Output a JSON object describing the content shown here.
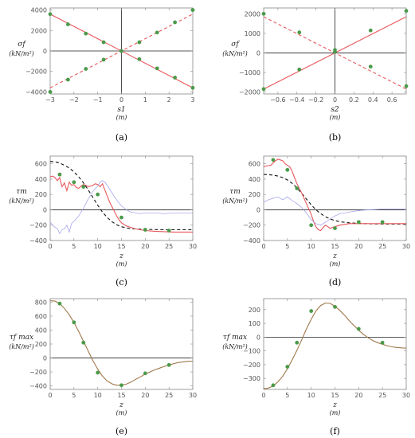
{
  "colors": {
    "red": "#e8575b",
    "blue": "#9b9bea",
    "black": "#111111",
    "green": "#4a9a4a",
    "olive": "#a0784a"
  },
  "chart_data": [
    {
      "panel": "a",
      "caption": "(a)",
      "type": "scatter",
      "xlabel": "s1",
      "xunit": "(m)",
      "ylabel": "σf",
      "yunit": "(kN/m²)",
      "xlim": [
        -3,
        3
      ],
      "ylim": [
        -4200,
        4200
      ],
      "xticks": [
        -3,
        -2,
        -1,
        0,
        1,
        2,
        3
      ],
      "yticks": [
        -4000,
        -2000,
        0,
        2000,
        4000
      ],
      "lines": [
        {
          "color": "red",
          "style": "solid",
          "x": [
            -3,
            3
          ],
          "y": [
            3600,
            -3600
          ]
        },
        {
          "color": "red",
          "style": "dashed",
          "x": [
            -3,
            3
          ],
          "y": [
            -3600,
            3600
          ]
        }
      ],
      "points": {
        "color": "green",
        "x": [
          -3,
          -2.25,
          -1.5,
          -0.75,
          0,
          0.75,
          1.5,
          2.25,
          3,
          -3,
          -2.25,
          -1.5,
          -0.75,
          0.75,
          1.5,
          2.25,
          3
        ],
        "y": [
          3600,
          2600,
          1700,
          850,
          0,
          -800,
          -1700,
          -2600,
          -3600,
          -4000,
          -2800,
          -1750,
          -850,
          850,
          1800,
          2800,
          4000
        ]
      }
    },
    {
      "panel": "b",
      "caption": "(b)",
      "type": "scatter",
      "xlabel": "s2",
      "xunit": "(m)",
      "ylabel": "σf",
      "yunit": "(kN/m²)",
      "xlim": [
        -0.75,
        0.75
      ],
      "ylim": [
        -2100,
        2300
      ],
      "xticks": [
        -0.6,
        -0.4,
        -0.2,
        0.0,
        0.2,
        0.4,
        0.6
      ],
      "yticks": [
        -2000,
        -1000,
        0,
        1000,
        2000
      ],
      "lines": [
        {
          "color": "red",
          "style": "solid",
          "x": [
            -0.75,
            0.75
          ],
          "y": [
            -1850,
            1850
          ]
        },
        {
          "color": "red",
          "style": "dashed",
          "x": [
            -0.75,
            0.75
          ],
          "y": [
            1850,
            -1850
          ]
        }
      ],
      "points": {
        "color": "green",
        "x": [
          -0.75,
          -0.375,
          0,
          0.375,
          0.75,
          -0.75,
          -0.375,
          0,
          0.375,
          0.75
        ],
        "y": [
          -1850,
          -850,
          150,
          1150,
          2150,
          2000,
          1050,
          50,
          -700,
          -1700
        ]
      }
    },
    {
      "panel": "c",
      "caption": "(c)",
      "type": "line",
      "xlabel": "z",
      "xunit": "(m)",
      "ylabel": "τm",
      "yunit": "(kN/m²)",
      "xlim": [
        0,
        30
      ],
      "ylim": [
        -400,
        700
      ],
      "xticks": [
        0,
        5,
        10,
        15,
        20,
        25,
        30
      ],
      "yticks": [
        -400,
        -200,
        0,
        200,
        400,
        600
      ],
      "series": [
        {
          "color": "black",
          "style": "dashed",
          "x": [
            0,
            1,
            2,
            3,
            4,
            5,
            6,
            7,
            8,
            9,
            10,
            11,
            12,
            13,
            14,
            15,
            16,
            17,
            18,
            20,
            22,
            25,
            28,
            30
          ],
          "y": [
            630,
            625,
            610,
            580,
            545,
            495,
            430,
            350,
            260,
            160,
            60,
            -30,
            -100,
            -155,
            -195,
            -220,
            -235,
            -245,
            -250,
            -255,
            -258,
            -260,
            -260,
            -260
          ]
        },
        {
          "color": "red",
          "style": "solid",
          "x": [
            0,
            0.5,
            1,
            1.5,
            2,
            2.5,
            3,
            3.5,
            4,
            4.5,
            5,
            5.5,
            6,
            6.5,
            7,
            7.5,
            8,
            8.5,
            9,
            9.5,
            10,
            10.5,
            11,
            11.5,
            12,
            12.5,
            13,
            13.5,
            14,
            14.5,
            15,
            16,
            17,
            18,
            19,
            20,
            22,
            24,
            26,
            28,
            30
          ],
          "y": [
            430,
            440,
            420,
            380,
            420,
            300,
            350,
            250,
            360,
            320,
            330,
            290,
            280,
            310,
            330,
            320,
            300,
            310,
            320,
            340,
            330,
            300,
            340,
            260,
            180,
            100,
            40,
            -20,
            -80,
            -130,
            -170,
            -210,
            -230,
            -250,
            -260,
            -270,
            -280,
            -285,
            -290,
            -290,
            -290
          ]
        },
        {
          "color": "blue",
          "style": "solid",
          "x": [
            0,
            1,
            1.5,
            2,
            2.5,
            3,
            3.5,
            4,
            4.5,
            5,
            6,
            7,
            8,
            9,
            10,
            10.5,
            11,
            11.5,
            12,
            12.5,
            13,
            13.5,
            14,
            14.5,
            15,
            16,
            17,
            18,
            19,
            20,
            22,
            24,
            26,
            28,
            30
          ],
          "y": [
            -160,
            -230,
            -240,
            -310,
            -260,
            -250,
            -200,
            -290,
            -180,
            -150,
            -80,
            20,
            140,
            240,
            310,
            360,
            380,
            360,
            320,
            270,
            220,
            170,
            130,
            90,
            50,
            0,
            -30,
            -40,
            -50,
            -40,
            -40,
            -50,
            -40,
            -40,
            -40
          ]
        }
      ],
      "points": {
        "color": "green",
        "x": [
          2,
          5,
          7,
          10,
          15,
          20,
          25
        ],
        "y": [
          460,
          360,
          300,
          200,
          -100,
          -260,
          -270
        ]
      }
    },
    {
      "panel": "d",
      "caption": "(d)",
      "type": "line",
      "xlabel": "z",
      "xunit": "(m)",
      "ylabel": "τm",
      "yunit": "(kN/m²)",
      "xlim": [
        0,
        30
      ],
      "ylim": [
        -400,
        700
      ],
      "xticks": [
        0,
        5,
        10,
        15,
        20,
        25,
        30
      ],
      "yticks": [
        -400,
        -200,
        0,
        200,
        400,
        600
      ],
      "series": [
        {
          "color": "black",
          "style": "dashed",
          "x": [
            0,
            1,
            2,
            3,
            4,
            5,
            6,
            7,
            8,
            9,
            10,
            11,
            12,
            13,
            14,
            15,
            16,
            18,
            20,
            22,
            25,
            28,
            30
          ],
          "y": [
            460,
            458,
            452,
            440,
            420,
            390,
            345,
            285,
            215,
            140,
            65,
            0,
            -50,
            -90,
            -120,
            -140,
            -155,
            -170,
            -178,
            -182,
            -185,
            -185,
            -185
          ]
        },
        {
          "color": "red",
          "style": "solid",
          "x": [
            0,
            0.5,
            1,
            1.5,
            2,
            2.5,
            3,
            3.5,
            4,
            4.5,
            5,
            5.5,
            6,
            6.5,
            7,
            8,
            9,
            10,
            10.5,
            11,
            11.5,
            12,
            12.5,
            13,
            13.5,
            14,
            15,
            16,
            17,
            18,
            20,
            22,
            25,
            28,
            30
          ],
          "y": [
            560,
            570,
            575,
            580,
            610,
            640,
            660,
            650,
            640,
            600,
            580,
            560,
            500,
            420,
            340,
            220,
            80,
            -60,
            -150,
            -220,
            -260,
            -270,
            -230,
            -200,
            -220,
            -240,
            -220,
            -200,
            -190,
            -180,
            -180,
            -180,
            -180,
            -180,
            -180
          ]
        },
        {
          "color": "blue",
          "style": "solid",
          "x": [
            0,
            1,
            2,
            3,
            4,
            5,
            6,
            7,
            8,
            9,
            10,
            11,
            12,
            13,
            14,
            15,
            16,
            18,
            20,
            22,
            25,
            28,
            30
          ],
          "y": [
            100,
            130,
            150,
            170,
            130,
            170,
            120,
            80,
            30,
            -40,
            -130,
            -180,
            -200,
            -160,
            -120,
            -80,
            -50,
            -30,
            -10,
            0,
            10,
            10,
            10
          ]
        }
      ],
      "points": {
        "color": "green",
        "x": [
          2,
          5,
          7,
          10,
          15,
          20,
          25
        ],
        "y": [
          650,
          520,
          280,
          -200,
          -240,
          -160,
          -160
        ]
      }
    },
    {
      "panel": "e",
      "caption": "(e)",
      "type": "line",
      "xlabel": "z",
      "xunit": "(m)",
      "ylabel": "τf max",
      "yunit": "(kN/m²)",
      "xlim": [
        0,
        30
      ],
      "ylim": [
        -450,
        850
      ],
      "xticks": [
        0,
        5,
        10,
        15,
        20,
        25,
        30
      ],
      "yticks": [
        -400,
        -200,
        0,
        200,
        400,
        600,
        800
      ],
      "series": [
        {
          "color": "olive",
          "style": "solid",
          "x": [
            0,
            1,
            2,
            3,
            4,
            5,
            6,
            7,
            8,
            9,
            10,
            11,
            12,
            13,
            14,
            15,
            16,
            17,
            18,
            19,
            20,
            21,
            22,
            23,
            24,
            25,
            26,
            27,
            28,
            29,
            30
          ],
          "y": [
            820,
            815,
            780,
            710,
            620,
            510,
            380,
            240,
            100,
            -40,
            -160,
            -260,
            -330,
            -370,
            -390,
            -390,
            -375,
            -345,
            -305,
            -270,
            -230,
            -200,
            -170,
            -145,
            -120,
            -100,
            -80,
            -65,
            -55,
            -48,
            -45
          ]
        }
      ],
      "points": {
        "color": "green",
        "x": [
          2,
          5,
          7,
          10,
          15,
          20,
          25
        ],
        "y": [
          780,
          510,
          220,
          -210,
          -390,
          -220,
          -100
        ]
      }
    },
    {
      "panel": "f",
      "caption": "(f)",
      "type": "line",
      "xlabel": "z",
      "xunit": "(m)",
      "ylabel": "τf max",
      "yunit": "(kN/m²)",
      "xlim": [
        0,
        30
      ],
      "ylim": [
        -380,
        280
      ],
      "xticks": [
        0,
        5,
        10,
        15,
        20,
        25,
        30
      ],
      "yticks": [
        -300,
        -200,
        -100,
        0,
        100,
        200
      ],
      "series": [
        {
          "color": "olive",
          "style": "solid",
          "x": [
            0,
            1,
            2,
            3,
            4,
            5,
            6,
            7,
            8,
            9,
            10,
            11,
            12,
            13,
            14,
            15,
            16,
            17,
            18,
            19,
            20,
            21,
            22,
            23,
            24,
            25,
            26,
            27,
            28,
            29,
            30
          ],
          "y": [
            -375,
            -370,
            -355,
            -325,
            -285,
            -230,
            -165,
            -95,
            -20,
            60,
            130,
            190,
            230,
            248,
            245,
            225,
            195,
            160,
            120,
            85,
            50,
            20,
            -5,
            -25,
            -40,
            -52,
            -62,
            -70,
            -75,
            -78,
            -80
          ]
        }
      ],
      "points": {
        "color": "green",
        "x": [
          2,
          5,
          7,
          10,
          15,
          20,
          25
        ],
        "y": [
          -350,
          -215,
          -40,
          190,
          220,
          60,
          -40
        ]
      }
    }
  ]
}
